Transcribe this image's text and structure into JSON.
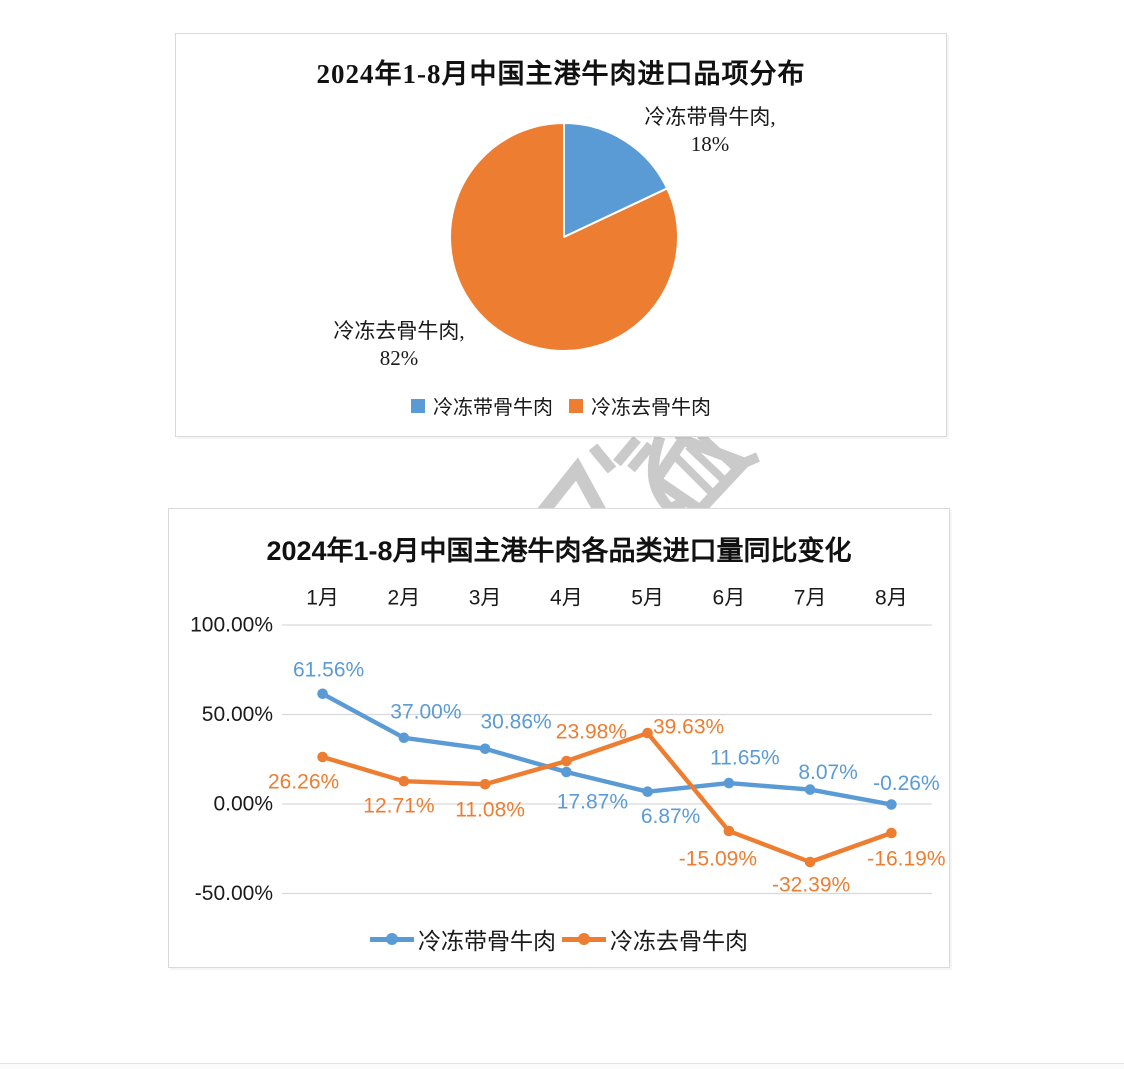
{
  "chart_data": [
    {
      "type": "pie",
      "title": "2024年1-8月中国主港牛肉进口品项分布",
      "slices": [
        {
          "key": "frozen-bone-in-beef",
          "label": "冷冻带骨牛肉",
          "value": 18,
          "color": "#5b9bd5",
          "callout": "冷冻带骨牛肉,",
          "callout_value": "18%"
        },
        {
          "key": "frozen-boneless-beef",
          "label": "冷冻去骨牛肉",
          "value": 82,
          "color": "#ed7d31",
          "callout": "冷冻去骨牛肉,",
          "callout_value": "82%"
        }
      ],
      "legend": [
        "冷冻带骨牛肉",
        "冷冻去骨牛肉"
      ],
      "legend_position": "bottom"
    },
    {
      "type": "line",
      "title": "2024年1-8月中国主港牛肉各品类进口量同比变化",
      "categories": [
        "1月",
        "2月",
        "3月",
        "4月",
        "5月",
        "6月",
        "7月",
        "8月"
      ],
      "x_axis_labels_position": "top",
      "series": [
        {
          "key": "frozen-bone-in-beef",
          "name": "冷冻带骨牛肉",
          "color": "#5b9bd5",
          "values": [
            61.56,
            37.0,
            30.86,
            17.87,
            6.87,
            11.65,
            8.07,
            -0.26
          ],
          "labels": [
            "61.56%",
            "37.00%",
            "30.86%",
            "17.87%",
            "6.87%",
            "11.65%",
            "8.07%",
            "-0.26%"
          ]
        },
        {
          "key": "frozen-boneless-beef",
          "name": "冷冻去骨牛肉",
          "color": "#ed7d31",
          "values": [
            26.26,
            12.71,
            11.08,
            23.98,
            39.63,
            -15.09,
            -32.39,
            -16.19
          ],
          "labels": [
            "26.26%",
            "12.71%",
            "11.08%",
            "23.98%",
            "39.63%",
            "-15.09%",
            "-32.39%",
            "-16.19%"
          ]
        }
      ],
      "y_ticks": [
        "100.00%",
        "50.00%",
        "0.00%",
        "-50.00%"
      ],
      "y_tick_values": [
        100,
        50,
        0,
        -50
      ],
      "ylim": [
        -50,
        100
      ],
      "grid": true,
      "gridline_color": "#d9d9d9",
      "legend_position": "bottom"
    }
  ],
  "watermark": {
    "type": "logo",
    "color": "#cacaca"
  }
}
